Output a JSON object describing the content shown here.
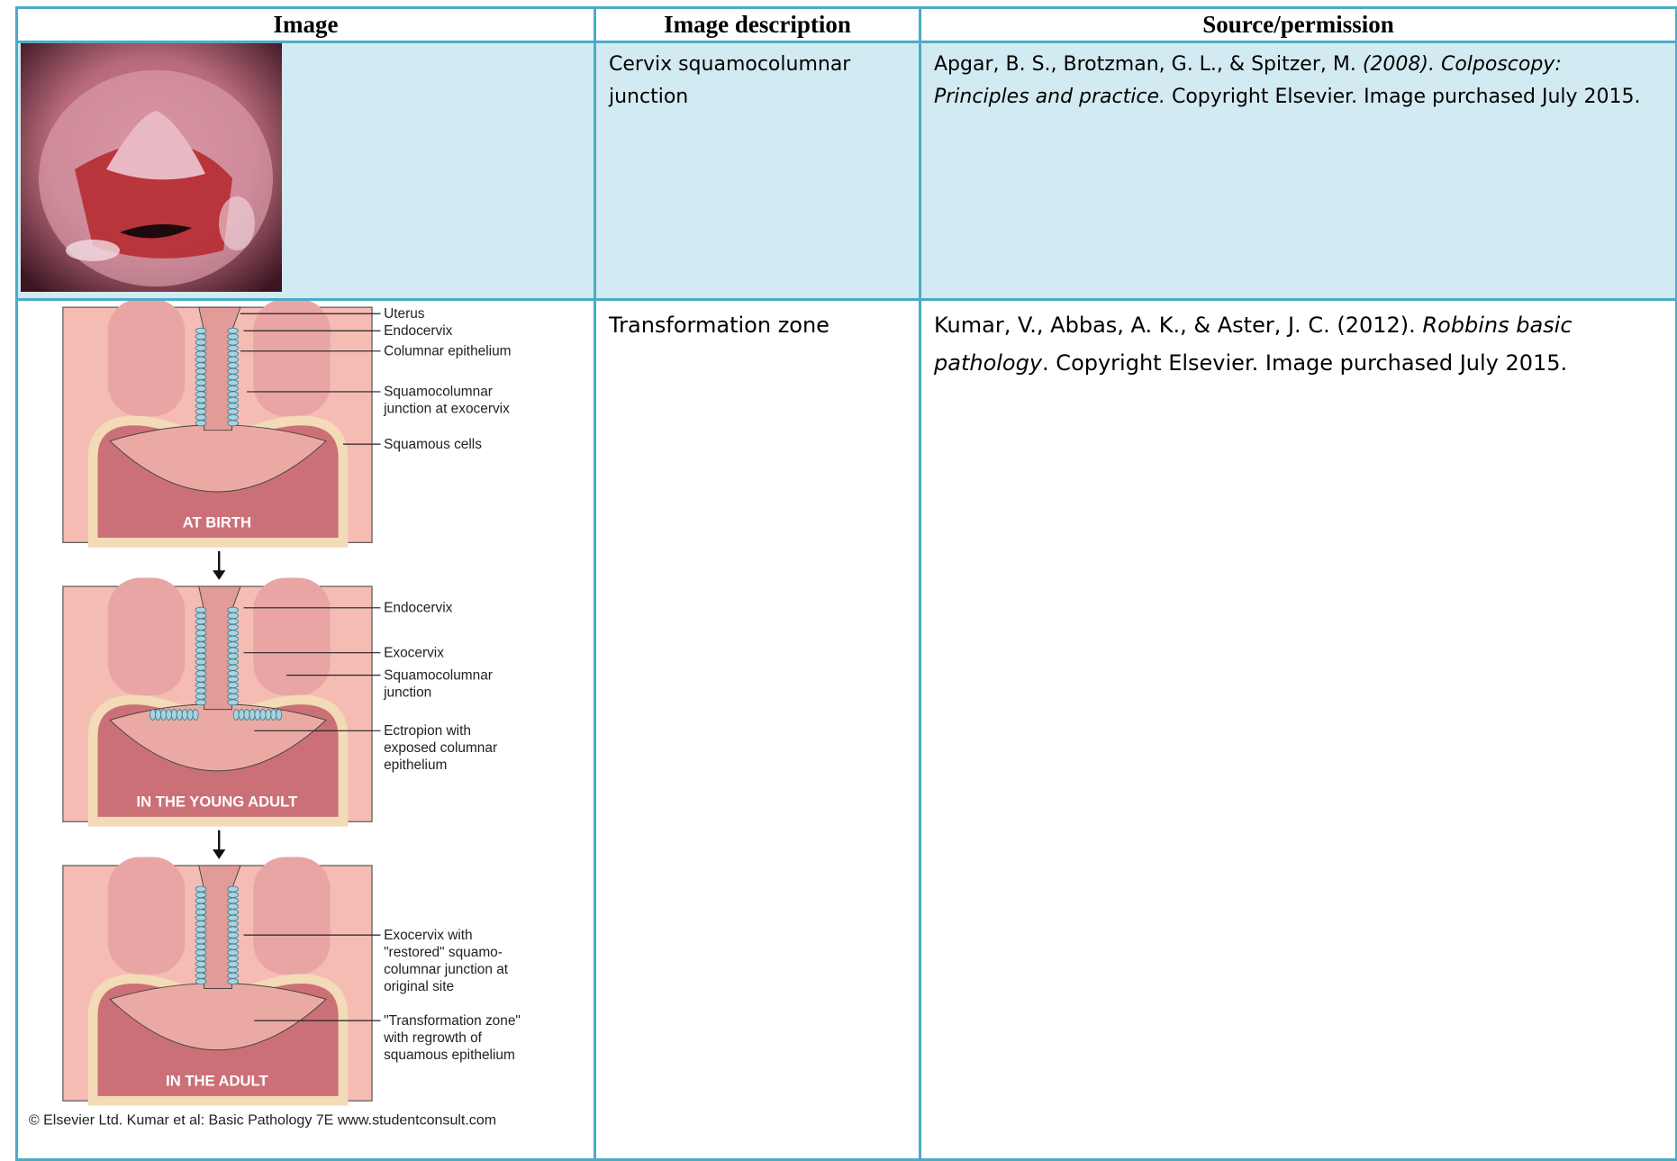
{
  "table": {
    "headers": [
      "Image",
      "Image description",
      "Source/permission"
    ],
    "rows": [
      {
        "description": "Cervix squamocolumnar junction",
        "source": [
          {
            "text": "Apgar, B. S., Brotzman, G. L., & Spitzer, M. ",
            "italic": false
          },
          {
            "text": "(2008). Colposcopy: Principles and practice.",
            "italic": true
          },
          {
            "text": " Copyright Elsevier. Image purchased July 2015.",
            "italic": false
          }
        ]
      },
      {
        "description": "Transformation zone",
        "source": [
          {
            "text": "Kumar, V., Abbas, A. K., & Aster, J. C. (2012). ",
            "italic": false
          },
          {
            "text": "Robbins basic pathology",
            "italic": true
          },
          {
            "text": ". Copyright Elsevier. Image purchased July 2015.",
            "italic": false
          }
        ]
      }
    ]
  },
  "diagram": {
    "panels": [
      {
        "title": "AT BIRTH",
        "labels": [
          {
            "lines": [
              "Uterus"
            ]
          },
          {
            "lines": [
              "Endocervix"
            ]
          },
          {
            "lines": [
              "Columnar epithelium"
            ]
          },
          {
            "lines": [
              "Squamocolumnar",
              "junction at exocervix"
            ]
          },
          {
            "lines": [
              "Squamous cells"
            ]
          }
        ]
      },
      {
        "title": "IN THE YOUNG ADULT",
        "labels": [
          {
            "lines": [
              "Endocervix"
            ]
          },
          {
            "lines": [
              "Exocervix"
            ]
          },
          {
            "lines": [
              "Squamocolumnar",
              "junction"
            ]
          },
          {
            "lines": [
              "Ectropion with",
              "exposed columnar",
              "epithelium"
            ]
          }
        ]
      },
      {
        "title": "IN THE ADULT",
        "labels": [
          {
            "lines": [
              "Exocervix with",
              "\"restored\" squamo-",
              "columnar junction at",
              "original site"
            ]
          },
          {
            "lines": [
              "\"Transformation zone\"",
              "with regrowth of",
              "squamous epithelium"
            ]
          }
        ]
      }
    ],
    "caption": "© Elsevier Ltd. Kumar et al: Basic Pathology 7E www.studentconsult.com"
  }
}
